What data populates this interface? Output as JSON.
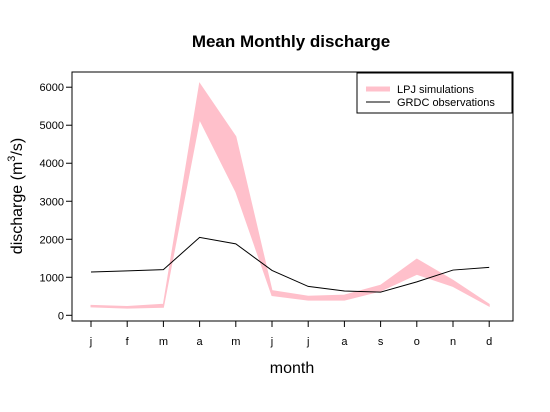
{
  "chart_data": {
    "type": "area",
    "title": "Mean Monthly discharge",
    "xlabel": "month",
    "ylabel": {
      "base": "discharge (m",
      "sup": "3",
      "rest": "/s)"
    },
    "categories": [
      "j",
      "f",
      "m",
      "a",
      "m",
      "j",
      "j",
      "a",
      "s",
      "o",
      "n",
      "d"
    ],
    "ylim": [
      -150,
      6400
    ],
    "yticks": [
      0,
      1000,
      2000,
      3000,
      4000,
      5000,
      6000
    ],
    "grid": false,
    "legend_position": "top-right",
    "series": [
      {
        "name": "LPJ simulations",
        "kind": "band",
        "color": "#ffc0cb",
        "lower": [
          220,
          190,
          210,
          5150,
          3250,
          520,
          400,
          400,
          640,
          1080,
          760,
          240
        ],
        "upper": [
          260,
          230,
          290,
          6100,
          4700,
          650,
          500,
          530,
          790,
          1480,
          920,
          290
        ]
      },
      {
        "name": "GRDC observations",
        "kind": "line",
        "color": "#000000",
        "values": [
          1140,
          1170,
          1200,
          2050,
          1880,
          1180,
          760,
          640,
          610,
          880,
          1190,
          1260
        ]
      }
    ]
  }
}
